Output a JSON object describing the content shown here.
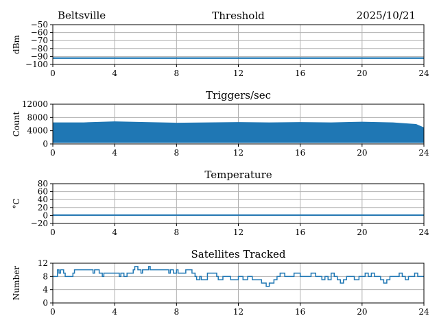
{
  "header": {
    "location": "Beltsville",
    "date": "2025/10/21"
  },
  "colors": {
    "series": "#1f77b4",
    "grid": "#b0b0b0",
    "axis": "#000000"
  },
  "chart_data": [
    {
      "type": "line",
      "title": "Threshold",
      "xlabel": "",
      "ylabel": "dBm",
      "xlim": [
        0,
        24
      ],
      "ylim": [
        -100,
        -50
      ],
      "xticks": [
        0,
        4,
        8,
        12,
        16,
        20,
        24
      ],
      "yticks": [
        -100,
        -90,
        -80,
        -70,
        -60,
        -50
      ],
      "ytick_labels": [
        "−100",
        "−90",
        "−80",
        "−70",
        "−60",
        "−50"
      ],
      "grid": true,
      "series": [
        {
          "x": [
            0,
            24
          ],
          "y": [
            -92,
            -92
          ]
        }
      ]
    },
    {
      "type": "area",
      "title": "Triggers/sec",
      "xlabel": "",
      "ylabel": "Count",
      "xlim": [
        0,
        24
      ],
      "ylim": [
        0,
        12000
      ],
      "xticks": [
        0,
        4,
        8,
        12,
        16,
        20,
        24
      ],
      "yticks": [
        0,
        4000,
        8000,
        12000
      ],
      "ytick_labels": [
        "0",
        "4000",
        "8000",
        "12000"
      ],
      "grid": true,
      "series": [
        {
          "x": [
            0,
            2,
            4,
            6,
            8,
            10,
            12,
            14,
            16,
            18,
            20,
            22,
            23.5,
            24
          ],
          "low": [
            300,
            300,
            300,
            300,
            300,
            300,
            300,
            300,
            300,
            300,
            300,
            300,
            300,
            300
          ],
          "high": [
            6500,
            6500,
            6800,
            6600,
            6400,
            6500,
            6600,
            6500,
            6600,
            6500,
            6700,
            6500,
            6000,
            5000
          ]
        }
      ]
    },
    {
      "type": "line",
      "title": "Temperature",
      "xlabel": "",
      "ylabel": "°C",
      "xlim": [
        0,
        24
      ],
      "ylim": [
        -20,
        80
      ],
      "xticks": [
        0,
        4,
        8,
        12,
        16,
        20,
        24
      ],
      "yticks": [
        -20,
        0,
        20,
        40,
        60,
        80
      ],
      "ytick_labels": [
        "−20",
        "0",
        "20",
        "40",
        "60",
        "80"
      ],
      "grid": true,
      "series": [
        {
          "x": [
            0,
            24
          ],
          "y": [
            1,
            1
          ]
        }
      ]
    },
    {
      "type": "line",
      "title": "Satellites Tracked",
      "xlabel": "",
      "ylabel": "Number",
      "xlim": [
        0,
        24
      ],
      "ylim": [
        0,
        12
      ],
      "xticks": [
        0,
        4,
        8,
        12,
        16,
        20,
        24
      ],
      "yticks": [
        0,
        4,
        8,
        12
      ],
      "ytick_labels": [
        "0",
        "4",
        "8",
        "12"
      ],
      "grid": true,
      "step": true,
      "series": [
        {
          "x": [
            0,
            0.3,
            0.4,
            0.5,
            0.7,
            0.8,
            1.3,
            1.4,
            2.0,
            2.6,
            2.7,
            3.0,
            3.2,
            3.3,
            4.0,
            4.3,
            4.4,
            4.6,
            4.8,
            5.0,
            5.2,
            5.3,
            5.5,
            5.7,
            5.8,
            6.0,
            6.2,
            6.3,
            6.5,
            7.0,
            7.5,
            7.6,
            7.8,
            8.0,
            8.1,
            8.5,
            8.6,
            9.0,
            9.2,
            9.3,
            9.5,
            9.6,
            10.0,
            10.4,
            10.6,
            10.7,
            11.0,
            11.2,
            11.5,
            11.7,
            12.0,
            12.3,
            12.6,
            12.9,
            13.2,
            13.5,
            13.8,
            14.0,
            14.3,
            14.5,
            14.7,
            15.0,
            15.3,
            15.6,
            16.0,
            16.3,
            16.7,
            17.0,
            17.2,
            17.4,
            17.6,
            17.8,
            18.0,
            18.2,
            18.4,
            18.6,
            18.8,
            19.0,
            19.2,
            19.5,
            19.8,
            20.0,
            20.2,
            20.4,
            20.6,
            20.8,
            21.0,
            21.2,
            21.4,
            21.6,
            21.8,
            22.0,
            22.2,
            22.4,
            22.6,
            22.8,
            23.0,
            23.2,
            23.4,
            23.6,
            24.0
          ],
          "y": [
            8,
            10,
            9,
            10,
            9,
            8,
            9,
            10,
            10,
            9,
            10,
            9,
            8,
            9,
            9,
            8,
            9,
            8,
            9,
            9,
            10,
            11,
            10,
            9,
            10,
            10,
            11,
            10,
            10,
            10,
            9,
            10,
            9,
            10,
            9,
            9,
            10,
            9,
            8,
            7,
            8,
            7,
            9,
            9,
            8,
            7,
            8,
            8,
            7,
            7,
            8,
            7,
            8,
            7,
            7,
            6,
            5,
            6,
            7,
            8,
            9,
            8,
            8,
            9,
            8,
            8,
            9,
            8,
            8,
            7,
            8,
            7,
            9,
            8,
            7,
            6,
            7,
            8,
            8,
            7,
            8,
            8,
            9,
            8,
            9,
            8,
            8,
            7,
            6,
            7,
            8,
            8,
            8,
            9,
            8,
            7,
            8,
            8,
            9,
            8,
            8
          ]
        }
      ]
    }
  ]
}
